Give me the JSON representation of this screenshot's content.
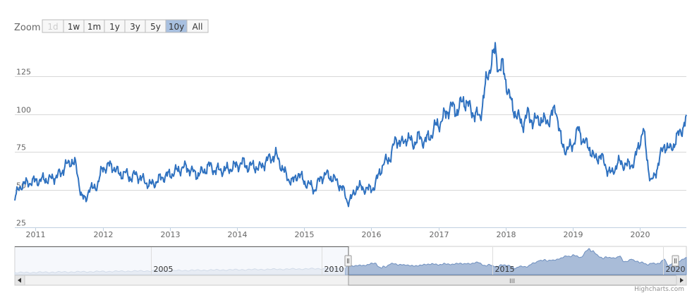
{
  "range_selector": {
    "label": "Zoom",
    "buttons": [
      {
        "label": "1d",
        "state": "disabled"
      },
      {
        "label": "1w",
        "state": "normal"
      },
      {
        "label": "1m",
        "state": "normal"
      },
      {
        "label": "1y",
        "state": "normal"
      },
      {
        "label": "3y",
        "state": "normal"
      },
      {
        "label": "5y",
        "state": "normal"
      },
      {
        "label": "10y",
        "state": "selected"
      },
      {
        "label": "All",
        "state": "normal"
      }
    ]
  },
  "credit": "Highcharts.com",
  "navigator": {
    "tick_labels": [
      "2005",
      "2010",
      "2015",
      "2020"
    ],
    "range": [
      "2001-01-01",
      "2020-09-10"
    ],
    "selected_range": [
      "2010-09-10",
      "2020-09-10"
    ],
    "scrollbar_grip": "III"
  },
  "colors": {
    "series": "#3072c0",
    "grid": "#d8d8d8",
    "selected_button": "#a8c0e0",
    "nav_fill_selected": "#a9bcd8",
    "nav_fill_outside": "#e8edf3"
  },
  "chart_data": {
    "type": "line",
    "title": "",
    "xlabel": "",
    "ylabel": "",
    "x_tick_labels": [
      "2011",
      "2012",
      "2013",
      "2014",
      "2015",
      "2016",
      "2017",
      "2018",
      "2019",
      "2020"
    ],
    "y_tick_labels": [
      "25",
      "50",
      "75",
      "100",
      "125"
    ],
    "xlim": [
      "2010-09-10",
      "2020-09-10"
    ],
    "ylim": [
      25,
      150
    ],
    "grid": true,
    "legend": "none",
    "series": [
      {
        "x": [
          "2010-09-10",
          "2010-10-15",
          "2010-12-01",
          "2011-01-15",
          "2011-03-01",
          "2011-04-01",
          "2011-05-01",
          "2011-05-20",
          "2011-06-10",
          "2011-07-01",
          "2011-07-20",
          "2011-08-05",
          "2011-08-20",
          "2011-09-10",
          "2011-10-01",
          "2011-10-20",
          "2011-11-10",
          "2011-12-01",
          "2012-01-01",
          "2012-02-01",
          "2012-03-01",
          "2012-04-01",
          "2012-05-01",
          "2012-06-01",
          "2012-07-01",
          "2012-08-01",
          "2012-09-15",
          "2012-10-15",
          "2012-11-15",
          "2013-01-01",
          "2013-02-01",
          "2013-03-01",
          "2013-04-01",
          "2013-05-01",
          "2013-06-01",
          "2013-07-01",
          "2013-08-01",
          "2013-09-01",
          "2013-10-01",
          "2013-11-01",
          "2014-01-01",
          "2014-02-01",
          "2014-03-01",
          "2014-04-01",
          "2014-05-01",
          "2014-06-01",
          "2014-07-01",
          "2014-08-01",
          "2014-09-01",
          "2014-10-01",
          "2014-11-01",
          "2014-12-01",
          "2015-01-01",
          "2015-02-01",
          "2015-03-01",
          "2015-04-01",
          "2015-05-01",
          "2015-06-01",
          "2015-07-01",
          "2015-08-01",
          "2015-08-25",
          "2015-09-15",
          "2015-10-15",
          "2015-11-15",
          "2015-12-15",
          "2016-01-20",
          "2016-02-15",
          "2016-03-15",
          "2016-04-15",
          "2016-05-15",
          "2016-06-15",
          "2016-07-15",
          "2016-08-15",
          "2016-09-15",
          "2016-10-15",
          "2016-11-15",
          "2016-12-15",
          "2017-01-15",
          "2017-02-15",
          "2017-03-15",
          "2017-04-15",
          "2017-05-15",
          "2017-06-15",
          "2017-07-15",
          "2017-08-15",
          "2017-09-15",
          "2017-10-15",
          "2017-11-05",
          "2017-11-25",
          "2017-12-15",
          "2018-01-10",
          "2018-02-05",
          "2018-03-01",
          "2018-04-01",
          "2018-05-01",
          "2018-06-01",
          "2018-07-01",
          "2018-08-01",
          "2018-09-01",
          "2018-10-01",
          "2018-11-01",
          "2018-12-01",
          "2019-01-01",
          "2019-02-01",
          "2019-03-01",
          "2019-04-01",
          "2019-05-01",
          "2019-06-01",
          "2019-07-01",
          "2019-08-01",
          "2019-09-01",
          "2019-10-01",
          "2019-11-01",
          "2019-12-01",
          "2020-01-01",
          "2020-01-20",
          "2020-02-10",
          "2020-03-01",
          "2020-03-20",
          "2020-04-15",
          "2020-05-15",
          "2020-06-15",
          "2020-07-15",
          "2020-08-15",
          "2020-09-10"
        ],
        "y": [
          45,
          53,
          55,
          56,
          57,
          57,
          60,
          60,
          67,
          66,
          70,
          67,
          57,
          46,
          42,
          52,
          50,
          53,
          64,
          66,
          65,
          60,
          61,
          58,
          60,
          57,
          53,
          55,
          58,
          60,
          62,
          64,
          65,
          62,
          60,
          62,
          66,
          63,
          63,
          63,
          66,
          68,
          65,
          66,
          64,
          68,
          71,
          73,
          65,
          58,
          55,
          61,
          55,
          53,
          50,
          58,
          60,
          58,
          55,
          50,
          42,
          44,
          52,
          51,
          50,
          52,
          62,
          68,
          72,
          84,
          80,
          85,
          80,
          85,
          82,
          85,
          92,
          95,
          102,
          105,
          102,
          110,
          105,
          100,
          98,
          120,
          135,
          142,
          130,
          132,
          118,
          105,
          100,
          93,
          100,
          95,
          97,
          95,
          97,
          105,
          80,
          76,
          80,
          90,
          82,
          78,
          70,
          73,
          65,
          60,
          68,
          67,
          66,
          68,
          82,
          90,
          70,
          55,
          58,
          70,
          80,
          76,
          83,
          90,
          96
        ]
      }
    ]
  }
}
